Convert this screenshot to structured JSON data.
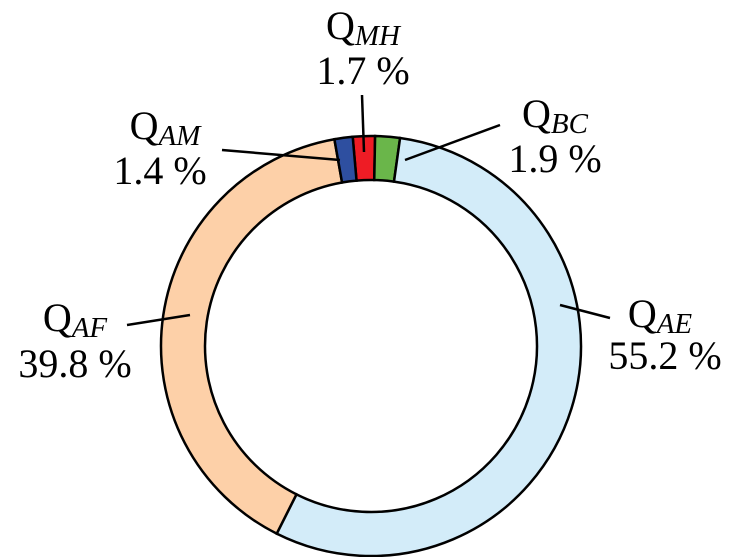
{
  "chart_data": {
    "type": "donut",
    "categories": [
      {
        "symbol": "Q",
        "subscript": "MH"
      },
      {
        "symbol": "Q",
        "subscript": "BC"
      },
      {
        "symbol": "Q",
        "subscript": "AE"
      },
      {
        "symbol": "Q",
        "subscript": "AF"
      },
      {
        "symbol": "Q",
        "subscript": "AM"
      }
    ],
    "values": [
      1.7,
      1.9,
      55.2,
      39.8,
      1.4
    ],
    "value_labels": [
      "1.7 %",
      "1.9 %",
      "55.2 %",
      "39.8 %",
      "1.4 %"
    ],
    "colors": [
      "#ee1c25",
      "#6ab64a",
      "#d3ecf9",
      "#fdd0a8",
      "#2e4fa0"
    ]
  }
}
